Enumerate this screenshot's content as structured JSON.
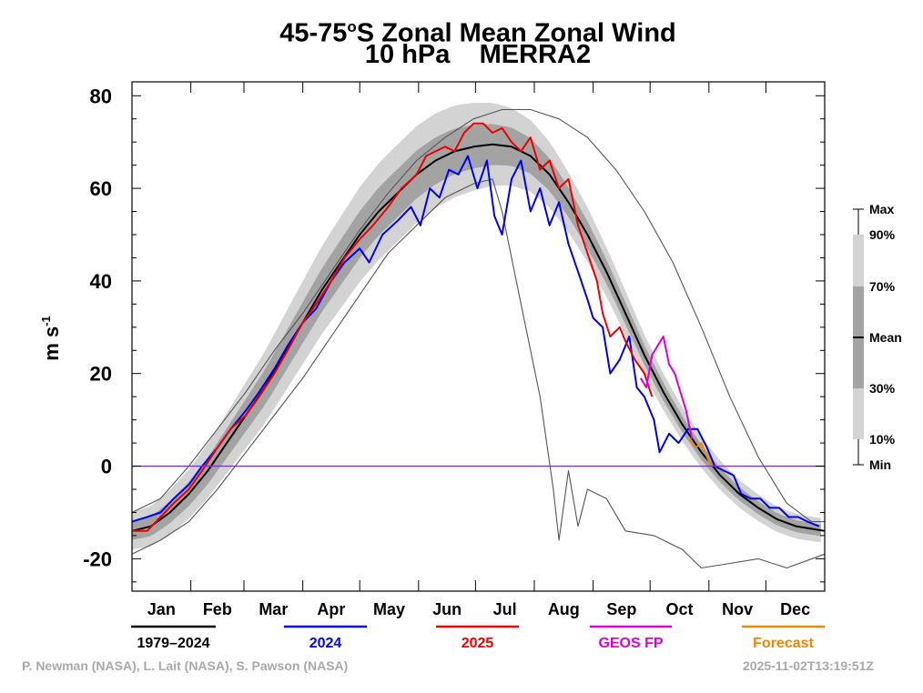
{
  "chart_data": {
    "type": "line",
    "title": "45-75",
    "title_superscript": "o",
    "title_suffix": "S Zonal Mean Zonal Wind",
    "subtitle": "10 hPa    MERRA2",
    "ylabel": "m s",
    "ylabel_superscript": "-1",
    "xlabel": "",
    "ylim": [
      -27,
      83
    ],
    "y_ticks": [
      "80",
      "60",
      "40",
      "20",
      "0",
      "-20"
    ],
    "y_tick_values": [
      80,
      60,
      40,
      20,
      0,
      -20
    ],
    "months": [
      "Jan",
      "Feb",
      "Mar",
      "Apr",
      "May",
      "Jun",
      "Jul",
      "Aug",
      "Sep",
      "Oct",
      "Nov",
      "Dec"
    ],
    "zero_line": 0,
    "legend_bar": {
      "labels": [
        "Max",
        "90%",
        "70%",
        "Mean",
        "30%",
        "10%",
        "Min"
      ]
    },
    "series": [
      {
        "name": "Max",
        "points": [
          [
            0,
            -10
          ],
          [
            15,
            -7
          ],
          [
            30,
            0
          ],
          [
            45,
            8
          ],
          [
            60,
            16
          ],
          [
            75,
            25
          ],
          [
            90,
            33
          ],
          [
            105,
            42
          ],
          [
            120,
            51
          ],
          [
            135,
            59
          ],
          [
            150,
            66
          ],
          [
            165,
            71
          ],
          [
            180,
            75
          ],
          [
            195,
            77
          ],
          [
            210,
            77
          ],
          [
            225,
            75
          ],
          [
            240,
            71
          ],
          [
            255,
            64
          ],
          [
            270,
            55
          ],
          [
            285,
            44
          ],
          [
            300,
            30
          ],
          [
            315,
            15
          ],
          [
            330,
            2
          ],
          [
            345,
            -8
          ],
          [
            358,
            -12
          ],
          [
            365,
            -12
          ]
        ]
      },
      {
        "name": "Min",
        "points": [
          [
            0,
            -19
          ],
          [
            15,
            -16
          ],
          [
            30,
            -12
          ],
          [
            45,
            -5
          ],
          [
            60,
            3
          ],
          [
            75,
            11
          ],
          [
            90,
            19
          ],
          [
            105,
            28
          ],
          [
            120,
            37
          ],
          [
            135,
            46
          ],
          [
            150,
            52
          ],
          [
            165,
            58
          ],
          [
            180,
            61
          ],
          [
            190,
            62
          ],
          [
            195,
            55
          ],
          [
            205,
            35
          ],
          [
            215,
            15
          ],
          [
            222,
            -5
          ],
          [
            225,
            -16
          ],
          [
            230,
            -1
          ],
          [
            235,
            -13
          ],
          [
            240,
            -5
          ],
          [
            250,
            -7
          ],
          [
            260,
            -14
          ],
          [
            275,
            -15
          ],
          [
            290,
            -18
          ],
          [
            300,
            -22
          ],
          [
            315,
            -21
          ],
          [
            330,
            -20
          ],
          [
            345,
            -22
          ],
          [
            365,
            -19
          ]
        ]
      },
      {
        "name": "1979–2024",
        "color": "#000000",
        "points": [
          [
            0,
            -14
          ],
          [
            10,
            -13
          ],
          [
            20,
            -10
          ],
          [
            30,
            -6
          ],
          [
            40,
            -1
          ],
          [
            50,
            5
          ],
          [
            60,
            11
          ],
          [
            70,
            17
          ],
          [
            80,
            24
          ],
          [
            90,
            31
          ],
          [
            100,
            38
          ],
          [
            110,
            44
          ],
          [
            120,
            50
          ],
          [
            130,
            55
          ],
          [
            140,
            59
          ],
          [
            150,
            63
          ],
          [
            160,
            66
          ],
          [
            170,
            68
          ],
          [
            180,
            69
          ],
          [
            190,
            69.5
          ],
          [
            200,
            69
          ],
          [
            210,
            67
          ],
          [
            220,
            63
          ],
          [
            230,
            57
          ],
          [
            240,
            50
          ],
          [
            250,
            42
          ],
          [
            260,
            33
          ],
          [
            270,
            24
          ],
          [
            280,
            16
          ],
          [
            290,
            9
          ],
          [
            300,
            3
          ],
          [
            310,
            -2
          ],
          [
            320,
            -6
          ],
          [
            330,
            -9
          ],
          [
            340,
            -11.5
          ],
          [
            350,
            -13
          ],
          [
            365,
            -14
          ]
        ]
      },
      {
        "name": "2024",
        "color": "#0000ee",
        "points": [
          [
            0,
            -12
          ],
          [
            8,
            -11
          ],
          [
            15,
            -10
          ],
          [
            22,
            -7
          ],
          [
            30,
            -4
          ],
          [
            37,
            0
          ],
          [
            45,
            4
          ],
          [
            52,
            8
          ],
          [
            60,
            12
          ],
          [
            67,
            16
          ],
          [
            75,
            21
          ],
          [
            82,
            26
          ],
          [
            90,
            31
          ],
          [
            97,
            34
          ],
          [
            105,
            40
          ],
          [
            112,
            44
          ],
          [
            120,
            47
          ],
          [
            125,
            44
          ],
          [
            132,
            50
          ],
          [
            140,
            53
          ],
          [
            147,
            56
          ],
          [
            152,
            52
          ],
          [
            157,
            60
          ],
          [
            162,
            58
          ],
          [
            167,
            64
          ],
          [
            172,
            63
          ],
          [
            177,
            67
          ],
          [
            182,
            60
          ],
          [
            187,
            66
          ],
          [
            191,
            54
          ],
          [
            195,
            50
          ],
          [
            200,
            62
          ],
          [
            205,
            66
          ],
          [
            210,
            55
          ],
          [
            215,
            60
          ],
          [
            220,
            52
          ],
          [
            225,
            57
          ],
          [
            230,
            48
          ],
          [
            235,
            42
          ],
          [
            240,
            36
          ],
          [
            243,
            32
          ],
          [
            248,
            30
          ],
          [
            252,
            20
          ],
          [
            257,
            23
          ],
          [
            262,
            28
          ],
          [
            266,
            17
          ],
          [
            270,
            15
          ],
          [
            275,
            10
          ],
          [
            278,
            3
          ],
          [
            283,
            7
          ],
          [
            288,
            5
          ],
          [
            293,
            8
          ],
          [
            298,
            8
          ],
          [
            303,
            4
          ],
          [
            307,
            0
          ],
          [
            312,
            -1
          ],
          [
            317,
            -2
          ],
          [
            321,
            -6
          ],
          [
            326,
            -7
          ],
          [
            331,
            -7
          ],
          [
            336,
            -9
          ],
          [
            341,
            -9
          ],
          [
            346,
            -11
          ],
          [
            351,
            -11
          ],
          [
            356,
            -12
          ],
          [
            362,
            -13
          ]
        ]
      },
      {
        "name": "2025",
        "color": "#ee0000",
        "points": [
          [
            0,
            -14
          ],
          [
            8,
            -14
          ],
          [
            15,
            -11
          ],
          [
            22,
            -8
          ],
          [
            30,
            -5
          ],
          [
            37,
            -1
          ],
          [
            45,
            4
          ],
          [
            52,
            8
          ],
          [
            60,
            11
          ],
          [
            67,
            15
          ],
          [
            75,
            20
          ],
          [
            82,
            25
          ],
          [
            90,
            31
          ],
          [
            97,
            35
          ],
          [
            105,
            40
          ],
          [
            112,
            45
          ],
          [
            120,
            49
          ],
          [
            127,
            52
          ],
          [
            135,
            56
          ],
          [
            142,
            60
          ],
          [
            150,
            63
          ],
          [
            155,
            67
          ],
          [
            160,
            68
          ],
          [
            165,
            69
          ],
          [
            170,
            68
          ],
          [
            175,
            72
          ],
          [
            180,
            74
          ],
          [
            185,
            74
          ],
          [
            190,
            72
          ],
          [
            195,
            73
          ],
          [
            200,
            70
          ],
          [
            205,
            68
          ],
          [
            210,
            71
          ],
          [
            215,
            64
          ],
          [
            220,
            66
          ],
          [
            225,
            60
          ],
          [
            230,
            62
          ],
          [
            235,
            52
          ],
          [
            240,
            46
          ],
          [
            245,
            40
          ],
          [
            248,
            33
          ],
          [
            252,
            28
          ],
          [
            257,
            30
          ],
          [
            260,
            27
          ],
          [
            265,
            23
          ],
          [
            270,
            20
          ],
          [
            274,
            15
          ]
        ]
      },
      {
        "name": "GEOS FP",
        "color": "#dd00dd",
        "points": [
          [
            268,
            19
          ],
          [
            271,
            17
          ],
          [
            274,
            24
          ],
          [
            277,
            26
          ],
          [
            280,
            28
          ],
          [
            283,
            22
          ],
          [
            286,
            20
          ],
          [
            289,
            16
          ],
          [
            292,
            12
          ],
          [
            295,
            6
          ]
        ]
      },
      {
        "name": "Forecast",
        "color": "#ee8800",
        "points": [
          [
            294,
            6
          ],
          [
            297,
            4
          ],
          [
            300,
            5
          ],
          [
            302,
            3
          ],
          [
            304,
            1
          ],
          [
            306,
            0
          ]
        ]
      }
    ],
    "bands": [
      {
        "name": "10%-90%",
        "color": "#d3d3d3"
      },
      {
        "name": "30%-70%",
        "color": "#a3a3a3"
      }
    ]
  },
  "legend": [
    {
      "label": "1979–2024",
      "color": "#000000"
    },
    {
      "label": "2024",
      "color": "#0000ee"
    },
    {
      "label": "2025",
      "color": "#ee0000"
    },
    {
      "label": "GEOS FP",
      "color": "#dd00dd"
    },
    {
      "label": "Forecast",
      "color": "#ee8800"
    }
  ],
  "credits": {
    "authors": "P. Newman (NASA), L. Lait (NASA), S. Pawson (NASA)",
    "timestamp": "2025-11-02T13:19:51Z"
  },
  "colors": {
    "zero_line": "#8a2be2",
    "credit_text": "#a9a9a9"
  }
}
